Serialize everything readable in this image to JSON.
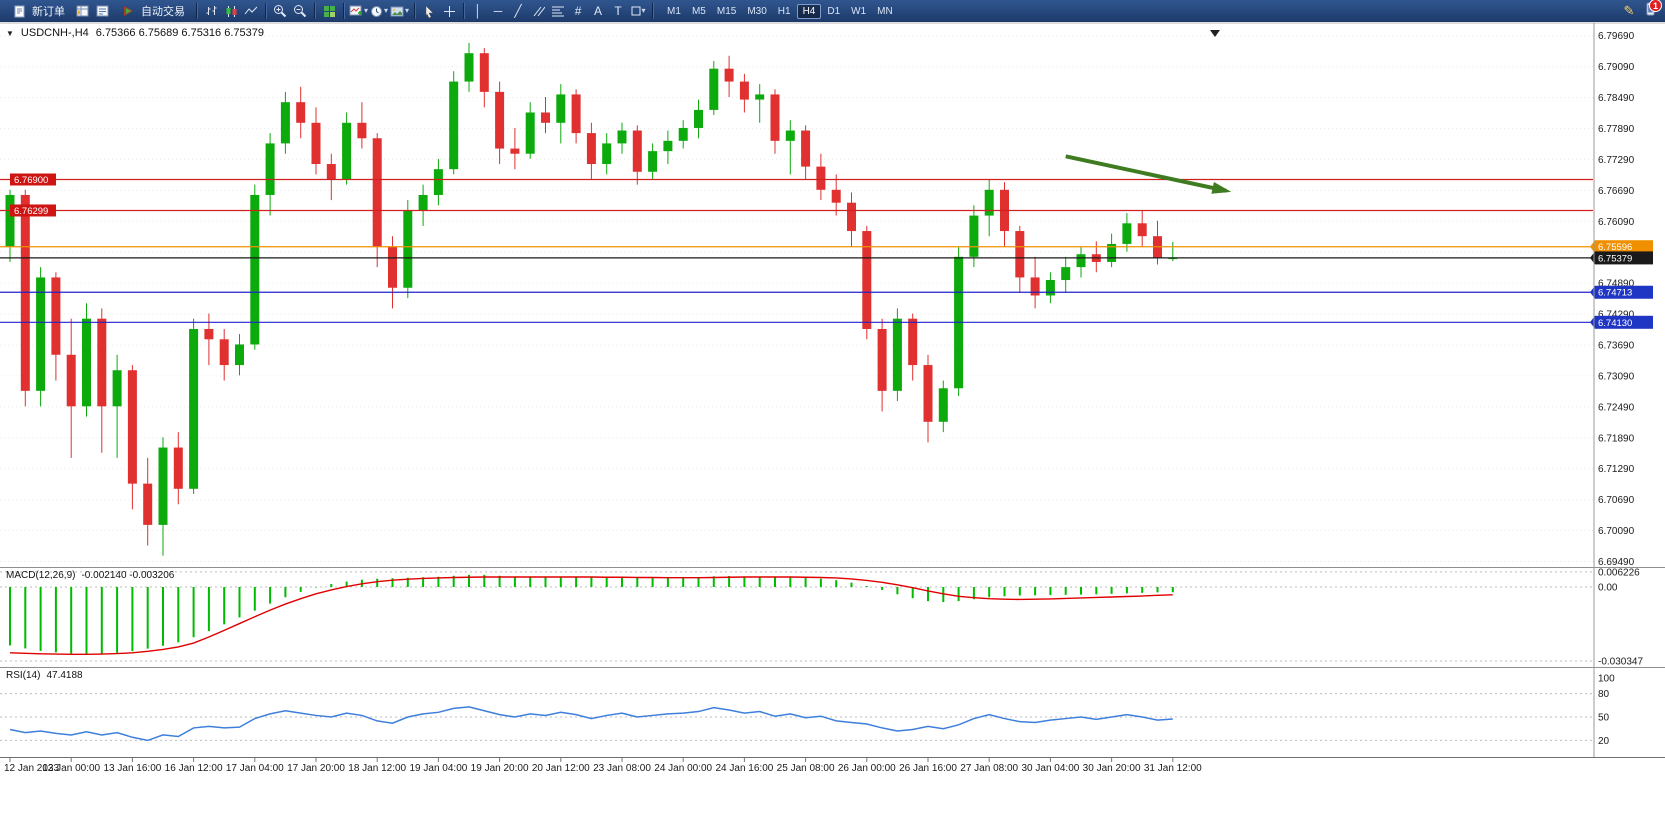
{
  "toolbar": {
    "new_order_label": "新订单",
    "autotrade_label": "自动交易",
    "timeframes": [
      "M1",
      "M5",
      "M15",
      "M30",
      "H1",
      "H4",
      "D1",
      "W1",
      "MN"
    ],
    "active_timeframe": "H4",
    "notification_count": "1"
  },
  "chart": {
    "title": "USDCNH-,H4",
    "ohlc": "6.75366 6.75689 6.75316 6.75379",
    "left_price_tags": [
      {
        "label": "6.76900",
        "price": 6.769,
        "color": "#cf1414",
        "text": "#ffffff"
      },
      {
        "label": "6.76299",
        "price": 6.76299,
        "color": "#cf1414",
        "text": "#ffffff"
      }
    ],
    "right_price_tags": [
      {
        "label": "6.75596",
        "price": 6.75596,
        "color": "#f09000",
        "text": "#ffffff"
      },
      {
        "label": "6.75379",
        "price": 6.75379,
        "color": "#1a1a1a",
        "text": "#ffffff"
      },
      {
        "label": "6.74713",
        "price": 6.74713,
        "color": "#1f35c4",
        "text": "#ffffff"
      },
      {
        "label": "6.74130",
        "price": 6.7413,
        "color": "#1f35c4",
        "text": "#ffffff"
      }
    ]
  },
  "macd": {
    "label": "MACD(12,26,9)",
    "values_text": "-0.002140 -0.003206",
    "axis_labels": [
      "0.006226",
      "0.00",
      "-0.030347"
    ]
  },
  "rsi": {
    "label": "RSI(14)",
    "value_text": "47.4188",
    "axis_labels": [
      "100",
      "80",
      "50",
      "20"
    ]
  },
  "chart_data": [
    {
      "type": "candlestick",
      "symbol": "USDCNH",
      "timeframe": "H4",
      "title": "USDCNH-,H4",
      "ylim": [
        6.6949,
        6.7975
      ],
      "y_tick_start": 6.7969,
      "y_tick_step": -0.006,
      "y_tick_count": 18,
      "bars_per_label": 4,
      "color_up": "#0caa0c",
      "color_down": "#e03030",
      "x_labels": [
        "12 Jan 2023",
        "13 Jan 00:00",
        "13 Jan 16:00",
        "16 Jan 12:00",
        "17 Jan 04:00",
        "17 Jan 20:00",
        "18 Jan 12:00",
        "19 Jan 04:00",
        "19 Jan 20:00",
        "20 Jan 12:00",
        "23 Jan 08:00",
        "24 Jan 00:00",
        "24 Jan 16:00",
        "25 Jan 08:00",
        "26 Jan 00:00",
        "26 Jan 16:00",
        "27 Jan 08:00",
        "30 Jan 04:00",
        "30 Jan 20:00",
        "31 Jan 12:00"
      ],
      "ohlc": [
        [
          6.756,
          6.767,
          6.753,
          6.766
        ],
        [
          6.766,
          6.767,
          6.725,
          6.728
        ],
        [
          6.728,
          6.752,
          6.725,
          6.75
        ],
        [
          6.75,
          6.751,
          6.73,
          6.735
        ],
        [
          6.735,
          6.742,
          6.715,
          6.725
        ],
        [
          6.725,
          6.745,
          6.723,
          6.742
        ],
        [
          6.742,
          6.744,
          6.716,
          6.725
        ],
        [
          6.725,
          6.735,
          6.715,
          6.732
        ],
        [
          6.732,
          6.733,
          6.705,
          6.71
        ],
        [
          6.71,
          6.715,
          6.698,
          6.702
        ],
        [
          6.702,
          6.719,
          6.696,
          6.717
        ],
        [
          6.717,
          6.72,
          6.706,
          6.709
        ],
        [
          6.709,
          6.742,
          6.708,
          6.74
        ],
        [
          6.74,
          6.743,
          6.733,
          6.738
        ],
        [
          6.738,
          6.74,
          6.73,
          6.733
        ],
        [
          6.733,
          6.739,
          6.731,
          6.737
        ],
        [
          6.737,
          6.768,
          6.736,
          6.766
        ],
        [
          6.766,
          6.778,
          6.762,
          6.776
        ],
        [
          6.776,
          6.786,
          6.774,
          6.784
        ],
        [
          6.784,
          6.787,
          6.777,
          6.78
        ],
        [
          6.78,
          6.783,
          6.77,
          6.772
        ],
        [
          6.772,
          6.774,
          6.765,
          6.769
        ],
        [
          6.769,
          6.782,
          6.768,
          6.78
        ],
        [
          6.78,
          6.784,
          6.775,
          6.777
        ],
        [
          6.777,
          6.778,
          6.752,
          6.756
        ],
        [
          6.756,
          6.758,
          6.744,
          6.748
        ],
        [
          6.748,
          6.765,
          6.746,
          6.763
        ],
        [
          6.763,
          6.768,
          6.76,
          6.766
        ],
        [
          6.766,
          6.773,
          6.764,
          6.771
        ],
        [
          6.771,
          6.79,
          6.77,
          6.788
        ],
        [
          6.788,
          6.7955,
          6.786,
          6.7935
        ],
        [
          6.7935,
          6.7945,
          6.783,
          6.786
        ],
        [
          6.786,
          6.788,
          6.772,
          6.775
        ],
        [
          6.775,
          6.779,
          6.771,
          6.774
        ],
        [
          6.774,
          6.784,
          6.773,
          6.782
        ],
        [
          6.782,
          6.785,
          6.778,
          6.78
        ],
        [
          6.78,
          6.7875,
          6.776,
          6.7855
        ],
        [
          6.7855,
          6.7865,
          6.776,
          6.778
        ],
        [
          6.778,
          6.78,
          6.769,
          6.772
        ],
        [
          6.772,
          6.778,
          6.77,
          6.776
        ],
        [
          6.776,
          6.78,
          6.774,
          6.7785
        ],
        [
          6.7785,
          6.7795,
          6.768,
          6.7705
        ],
        [
          6.7705,
          6.776,
          6.769,
          6.7745
        ],
        [
          6.7745,
          6.7785,
          6.772,
          6.7765
        ],
        [
          6.7765,
          6.7805,
          6.775,
          6.779
        ],
        [
          6.779,
          6.7845,
          6.777,
          6.7825
        ],
        [
          6.7825,
          6.792,
          6.7815,
          6.7905
        ],
        [
          6.7905,
          6.793,
          6.785,
          6.788
        ],
        [
          6.788,
          6.7895,
          6.782,
          6.7845
        ],
        [
          6.7845,
          6.7875,
          6.78,
          6.7855
        ],
        [
          6.7855,
          6.7865,
          6.774,
          6.7765
        ],
        [
          6.7765,
          6.7805,
          6.77,
          6.7785
        ],
        [
          6.7785,
          6.7795,
          6.769,
          6.7715
        ],
        [
          6.7715,
          6.774,
          6.765,
          6.767
        ],
        [
          6.767,
          6.77,
          6.762,
          6.7645
        ],
        [
          6.7645,
          6.7665,
          6.756,
          6.759
        ],
        [
          6.759,
          6.76,
          6.738,
          6.74
        ],
        [
          6.74,
          6.742,
          6.724,
          6.728
        ],
        [
          6.728,
          6.744,
          6.726,
          6.742
        ],
        [
          6.742,
          6.743,
          6.73,
          6.733
        ],
        [
          6.733,
          6.735,
          6.718,
          6.722
        ],
        [
          6.722,
          6.73,
          6.72,
          6.7285
        ],
        [
          6.7285,
          6.756,
          6.727,
          6.754
        ],
        [
          6.754,
          6.764,
          6.752,
          6.762
        ],
        [
          6.762,
          6.769,
          6.758,
          6.767
        ],
        [
          6.767,
          6.7685,
          6.756,
          6.759
        ],
        [
          6.759,
          6.76,
          6.747,
          6.75
        ],
        [
          6.75,
          6.754,
          6.744,
          6.7465
        ],
        [
          6.7465,
          6.751,
          6.745,
          6.7495
        ],
        [
          6.7495,
          6.754,
          6.747,
          6.752
        ],
        [
          6.752,
          6.756,
          6.75,
          6.7545
        ],
        [
          6.7545,
          6.757,
          6.751,
          6.753
        ],
        [
          6.753,
          6.7585,
          6.752,
          6.7565
        ],
        [
          6.7565,
          6.7625,
          6.755,
          6.7605
        ],
        [
          6.7605,
          6.763,
          6.756,
          6.758
        ],
        [
          6.758,
          6.761,
          6.7525,
          6.7537
        ],
        [
          6.75366,
          6.75689,
          6.75316,
          6.75379
        ]
      ],
      "hlines": [
        {
          "price": 6.769,
          "color": "#d02020",
          "label": "6.76900"
        },
        {
          "price": 6.76299,
          "color": "#d02020",
          "label": "6.76299"
        },
        {
          "price": 6.75596,
          "color": "#f09000",
          "label": "6.75596"
        },
        {
          "price": 6.75379,
          "color": "#1a1a1a",
          "label": "6.75379"
        },
        {
          "price": 6.74713,
          "color": "#2222cc",
          "label": "6.74713"
        },
        {
          "price": 6.7413,
          "color": "#2222cc",
          "label": "6.74130"
        }
      ],
      "arrow_annotation": {
        "bar_from": 69,
        "price_from": 6.7735,
        "bar_to": 79.5,
        "price_to": 6.7668,
        "color": "#3f7c21"
      }
    },
    {
      "type": "bar",
      "name": "MACD(12,26,9)",
      "current_text": "-0.002140 -0.003206",
      "ylim": [
        -0.030347,
        0.006226
      ],
      "color_histogram": "#00bb00",
      "color_signal": "#e00000",
      "values": [
        -0.024,
        -0.0252,
        -0.0262,
        -0.0268,
        -0.0273,
        -0.0275,
        -0.0274,
        -0.027,
        -0.0263,
        -0.0253,
        -0.0241,
        -0.0227,
        -0.0206,
        -0.0181,
        -0.0153,
        -0.0125,
        -0.0097,
        -0.0068,
        -0.0042,
        -0.002,
        -0.0002,
        0.0012,
        0.0022,
        0.003,
        0.0034,
        0.0036,
        0.0038,
        0.004,
        0.0042,
        0.0046,
        0.005,
        0.005,
        0.0046,
        0.0042,
        0.004,
        0.004,
        0.0041,
        0.0041,
        0.0039,
        0.0038,
        0.0038,
        0.0037,
        0.0037,
        0.0038,
        0.0039,
        0.0041,
        0.0044,
        0.0045,
        0.0043,
        0.0042,
        0.004,
        0.004,
        0.0037,
        0.0034,
        0.0028,
        0.0018,
        0.0004,
        -0.0012,
        -0.003,
        -0.0046,
        -0.0058,
        -0.0062,
        -0.0058,
        -0.005,
        -0.0042,
        -0.0038,
        -0.0035,
        -0.0034,
        -0.0033,
        -0.0032,
        -0.0031,
        -0.003,
        -0.0028,
        -0.0026,
        -0.0024,
        -0.0022,
        -0.00214
      ],
      "signal": [
        -0.027,
        -0.0272,
        -0.0274,
        -0.0275,
        -0.0276,
        -0.0276,
        -0.0275,
        -0.0273,
        -0.027,
        -0.0264,
        -0.0256,
        -0.0246,
        -0.023,
        -0.0205,
        -0.0178,
        -0.015,
        -0.0122,
        -0.0095,
        -0.007,
        -0.0048,
        -0.0028,
        -0.0012,
        0.0002,
        0.0013,
        0.0022,
        0.0028,
        0.0032,
        0.0035,
        0.0037,
        0.0039,
        0.004,
        0.0041,
        0.0041,
        0.0041,
        0.0041,
        0.0041,
        0.0041,
        0.0041,
        0.0041,
        0.004,
        0.004,
        0.0039,
        0.0039,
        0.0038,
        0.0038,
        0.0038,
        0.0039,
        0.004,
        0.0041,
        0.0041,
        0.0041,
        0.0041,
        0.004,
        0.0039,
        0.0037,
        0.0033,
        0.0027,
        0.0019,
        0.0009,
        -0.0003,
        -0.0016,
        -0.0028,
        -0.0038,
        -0.0044,
        -0.0048,
        -0.005,
        -0.0051,
        -0.005,
        -0.0049,
        -0.0047,
        -0.0045,
        -0.0043,
        -0.0041,
        -0.0039,
        -0.0037,
        -0.0034,
        -0.00321
      ]
    },
    {
      "type": "line",
      "name": "RSI(14)",
      "current": 47.4188,
      "ylim": [
        0,
        100
      ],
      "levels": [
        80,
        50,
        20
      ],
      "color": "#3e7edd",
      "values": [
        34,
        30,
        32,
        29,
        27,
        31,
        27,
        30,
        24,
        20,
        27,
        25,
        36,
        38,
        36,
        37,
        48,
        54,
        58,
        55,
        52,
        50,
        55,
        52,
        45,
        42,
        50,
        54,
        56,
        61,
        63,
        58,
        53,
        50,
        54,
        52,
        56,
        53,
        48,
        52,
        55,
        50,
        52,
        54,
        55,
        57,
        62,
        59,
        55,
        57,
        51,
        54,
        49,
        51,
        45,
        43,
        41,
        36,
        32,
        34,
        38,
        35,
        40,
        48,
        53,
        48,
        44,
        43,
        46,
        48,
        50,
        47,
        50,
        53,
        50,
        46,
        47.4
      ]
    }
  ]
}
